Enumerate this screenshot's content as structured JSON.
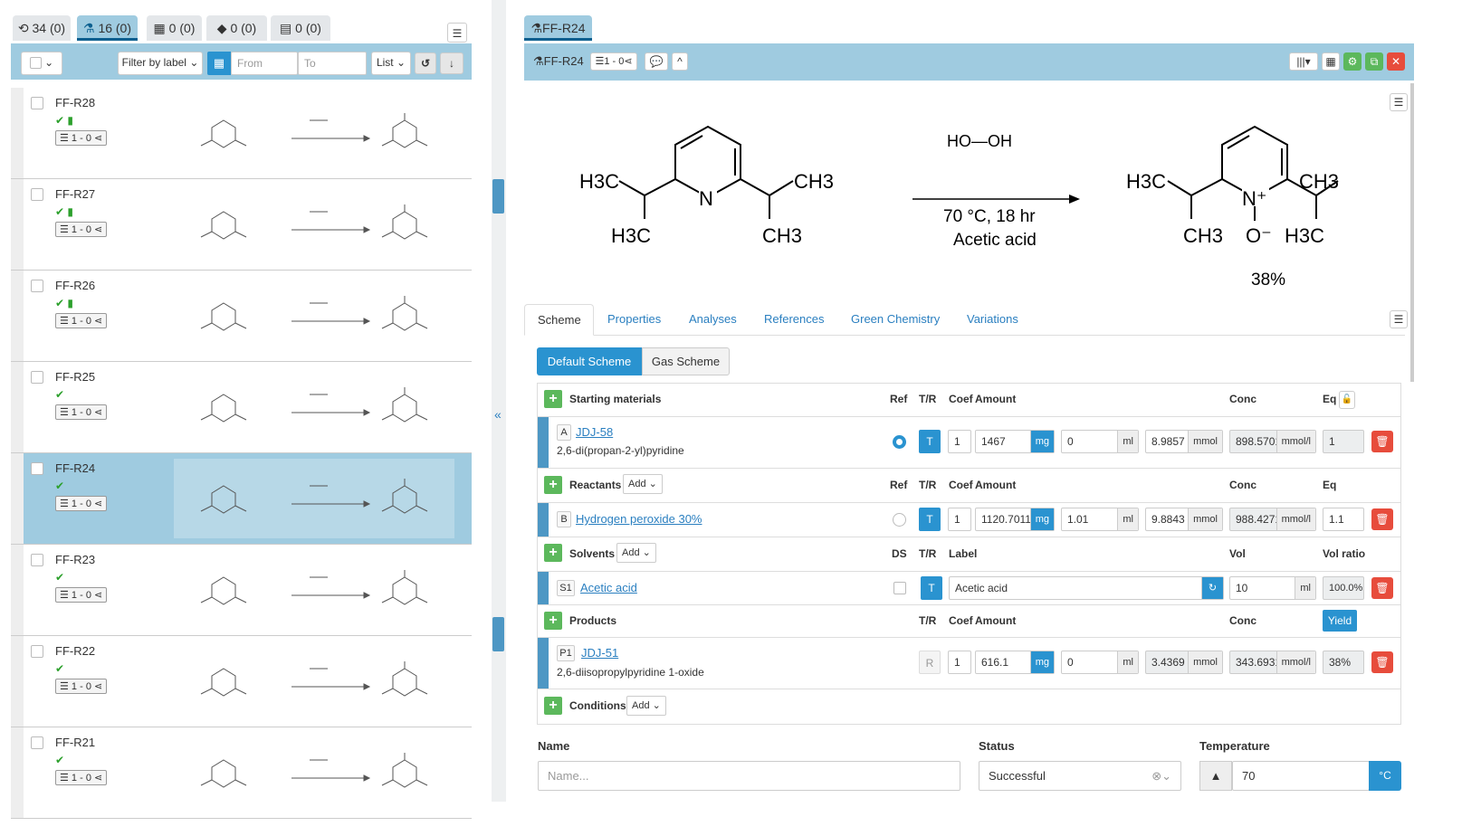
{
  "left": {
    "tabs": [
      {
        "icon": "sample-icon",
        "label": "34 (0)"
      },
      {
        "icon": "reaction-flask-icon",
        "label": "16 (0)",
        "active": true
      },
      {
        "icon": "wellplate-icon",
        "label": "0 (0)"
      },
      {
        "icon": "layers-icon",
        "label": "0 (0)"
      },
      {
        "icon": "document-icon",
        "label": "0 (0)"
      }
    ],
    "toolbar": {
      "filter_label": "Filter by label",
      "from_placeholder": "From",
      "to_placeholder": "To",
      "view": "List"
    },
    "rows": [
      {
        "label": "FF-R28",
        "bookmark": true,
        "share": "1 - 0"
      },
      {
        "label": "FF-R27",
        "bookmark": true,
        "share": "1 - 0"
      },
      {
        "label": "FF-R26",
        "bookmark": true,
        "share": "1 - 0"
      },
      {
        "label": "FF-R25",
        "bookmark": false,
        "share": "1 - 0"
      },
      {
        "label": "FF-R24",
        "bookmark": false,
        "share": "1 - 0",
        "selected": true
      },
      {
        "label": "FF-R23",
        "bookmark": false,
        "share": "1 - 0"
      },
      {
        "label": "FF-R22",
        "bookmark": false,
        "share": "1 - 0"
      },
      {
        "label": "FF-R21",
        "bookmark": false,
        "share": "1 - 0"
      }
    ]
  },
  "detail": {
    "tab_label": "FF-R24",
    "header_label": "FF-R24",
    "share": "1 - 0",
    "scheme": {
      "reagent": "HO—OH",
      "conditions": "70 °C, 18 hr",
      "solvent": "Acetic acid",
      "yield": "38%",
      "sm_labels": {
        "h3c_top": "H3C",
        "ch3_top": "CH3",
        "h3c_bottom": "H3C",
        "ch3_bottom": "CH3",
        "n": "N"
      },
      "prod_labels": {
        "h3c_top": "H3C",
        "ch3_top": "CH3",
        "ch3_bottom": "CH3",
        "o_minus": "O⁻",
        "h3c_bottom": "H3C",
        "n_plus": "N⁺"
      }
    },
    "tabs": [
      "Scheme",
      "Properties",
      "Analyses",
      "References",
      "Green Chemistry",
      "Variations"
    ],
    "scheme_buttons": [
      "Default Scheme",
      "Gas Scheme"
    ],
    "headers": {
      "ref": "Ref",
      "tr": "T/R",
      "coef": "Coef",
      "amount": "Amount",
      "conc": "Conc",
      "eq": "Eq",
      "ds": "DS",
      "label": "Label",
      "vol": "Vol",
      "vol_ratio": "Vol ratio",
      "yield": "Yield",
      "add": "Add"
    },
    "sections": {
      "starting": "Starting materials",
      "reactants": "Reactants",
      "solvents": "Solvents",
      "products": "Products",
      "conditions": "Conditions"
    },
    "starting_material": {
      "letter": "A",
      "short": "JDJ-58",
      "name": "2,6-di(propan-2-yl)pyridine",
      "tr": "T",
      "coef": "1",
      "mass": "1467",
      "mass_unit": "mg",
      "vol": "0",
      "vol_unit": "ml",
      "mol": "8.9857",
      "mol_unit": "mmol",
      "conc": "898.5701",
      "conc_unit": "mmol/l",
      "eq": "1"
    },
    "reactant": {
      "letter": "B",
      "short": "Hydrogen peroxide 30%",
      "tr": "T",
      "coef": "1",
      "mass": "1120.7011",
      "mass_unit": "mg",
      "vol": "1.01",
      "vol_unit": "ml",
      "mol": "9.8843",
      "mol_unit": "mmol",
      "conc": "988.4271",
      "conc_unit": "mmol/l",
      "eq": "1.1"
    },
    "solvent": {
      "letter": "S1",
      "short": "Acetic acid",
      "tr": "T",
      "label": "Acetic acid",
      "vol": "10",
      "vol_unit": "ml",
      "ratio": "100.0%"
    },
    "product": {
      "letter": "P1",
      "short": "JDJ-51",
      "name": "2,6-diisopropylpyridine 1-oxide",
      "tr": "R",
      "coef": "1",
      "mass": "616.1",
      "mass_unit": "mg",
      "vol": "0",
      "vol_unit": "ml",
      "mol": "3.4369",
      "mol_unit": "mmol",
      "conc": "343.6931",
      "conc_unit": "mmol/l",
      "yield": "38%"
    },
    "form": {
      "name_label": "Name",
      "name_placeholder": "Name...",
      "status_label": "Status",
      "status_value": "Successful",
      "temp_label": "Temperature",
      "temp_value": "70",
      "temp_unit": "°C"
    }
  },
  "colors": {
    "accent": "#2a93d0",
    "toolbar": "#9fcbe0",
    "success": "#5cb85c",
    "danger": "#e74c3c"
  }
}
